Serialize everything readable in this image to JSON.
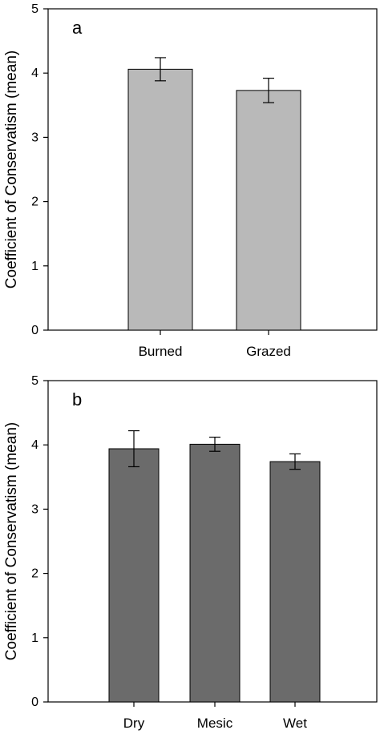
{
  "chart_data": [
    {
      "type": "bar",
      "panel_label": "a",
      "ylabel": "Coefficient of Conservatism (mean)",
      "xlabel": "",
      "ylim": [
        0,
        5
      ],
      "yticks": [
        "0",
        "1",
        "2",
        "3",
        "4",
        "5"
      ],
      "categories": [
        "Burned",
        "Grazed"
      ],
      "values": [
        4.06,
        3.73
      ],
      "errors": [
        0.18,
        0.19
      ],
      "bar_color": "#b9b9b9",
      "grid": false,
      "legend": "none"
    },
    {
      "type": "bar",
      "panel_label": "b",
      "ylabel": "Coefficient of Conservatism (mean)",
      "xlabel": "",
      "ylim": [
        0,
        5
      ],
      "yticks": [
        "0",
        "1",
        "2",
        "3",
        "4",
        "5"
      ],
      "categories": [
        "Dry",
        "Mesic",
        "Wet"
      ],
      "values": [
        3.94,
        4.01,
        3.74
      ],
      "errors": [
        0.28,
        0.11,
        0.12
      ],
      "bar_color": "#6b6b6b",
      "grid": false,
      "legend": "none"
    }
  ]
}
